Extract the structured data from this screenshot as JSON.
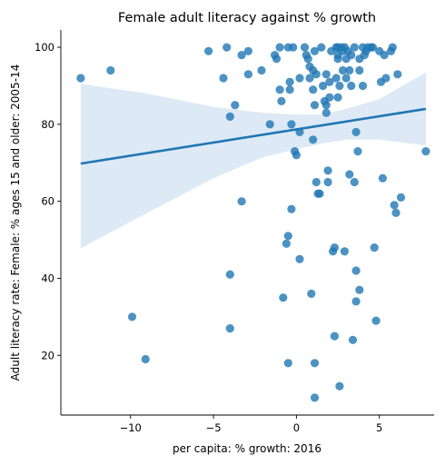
{
  "chart_data": {
    "type": "scatter",
    "title": "Female adult literacy against % growth",
    "xlabel": "per capita: % growth: 2016",
    "ylabel": "Adult literacy rate: Female: % ages 15 and older: 2005-14",
    "xlim": [
      -14.2,
      8.3
    ],
    "ylim": [
      4.5,
      104.5
    ],
    "xticks": [
      -10,
      -5,
      0,
      5
    ],
    "xtick_labels": [
      "−10",
      "−5",
      "0",
      "5"
    ],
    "yticks": [
      20,
      40,
      60,
      80,
      100
    ],
    "ytick_labels": [
      "20",
      "40",
      "60",
      "80",
      "100"
    ],
    "grid": false,
    "legend": "none",
    "colors": {
      "points": "#1f77b4",
      "line": "#1f77b4",
      "band": "#c6dbef"
    },
    "regression": {
      "x": [
        -13.0,
        7.8
      ],
      "y": [
        69.8,
        84.0
      ]
    },
    "confidence_band": {
      "x": [
        -13.0,
        -9.0,
        -5.0,
        -2.0,
        0.0,
        1.5,
        3.0,
        5.0,
        7.8
      ],
      "upper": [
        90.5,
        88.0,
        84.5,
        83.0,
        82.5,
        82.5,
        84.0,
        86.5,
        93.5
      ],
      "lower": [
        47.8,
        57.0,
        66.0,
        71.5,
        73.5,
        75.0,
        76.0,
        76.0,
        74.5
      ]
    },
    "points": [
      [
        -13.0,
        92
      ],
      [
        -11.2,
        94
      ],
      [
        -9.9,
        30
      ],
      [
        -9.1,
        19
      ],
      [
        -5.3,
        99
      ],
      [
        -4.4,
        92
      ],
      [
        -4.2,
        100
      ],
      [
        -4.0,
        82
      ],
      [
        -4.0,
        41
      ],
      [
        -4.0,
        27
      ],
      [
        -3.7,
        85
      ],
      [
        -3.3,
        98
      ],
      [
        -3.3,
        60
      ],
      [
        -2.9,
        99
      ],
      [
        -2.9,
        93
      ],
      [
        -2.1,
        94
      ],
      [
        -1.6,
        80
      ],
      [
        -1.3,
        98
      ],
      [
        -1.2,
        97
      ],
      [
        -1.0,
        100
      ],
      [
        -1.0,
        89
      ],
      [
        -0.9,
        86
      ],
      [
        -0.8,
        35
      ],
      [
        -0.6,
        49
      ],
      [
        -0.5,
        100
      ],
      [
        -0.5,
        51
      ],
      [
        -0.5,
        18
      ],
      [
        -0.4,
        91
      ],
      [
        -0.4,
        89
      ],
      [
        -0.3,
        80
      ],
      [
        -0.3,
        58
      ],
      [
        -0.2,
        100
      ],
      [
        -0.1,
        73
      ],
      [
        0.0,
        72
      ],
      [
        0.2,
        92
      ],
      [
        0.2,
        78
      ],
      [
        0.2,
        45
      ],
      [
        0.5,
        100
      ],
      [
        0.6,
        98
      ],
      [
        0.7,
        97
      ],
      [
        0.8,
        95
      ],
      [
        0.8,
        92
      ],
      [
        0.9,
        36
      ],
      [
        1.0,
        89
      ],
      [
        1.0,
        94
      ],
      [
        1.0,
        76
      ],
      [
        1.1,
        99
      ],
      [
        1.1,
        85
      ],
      [
        1.1,
        18
      ],
      [
        1.1,
        9
      ],
      [
        1.2,
        93
      ],
      [
        1.2,
        65
      ],
      [
        1.3,
        62
      ],
      [
        1.4,
        62
      ],
      [
        1.5,
        100
      ],
      [
        1.6,
        90
      ],
      [
        1.7,
        86
      ],
      [
        1.8,
        93
      ],
      [
        1.8,
        85
      ],
      [
        1.8,
        83
      ],
      [
        1.9,
        68
      ],
      [
        1.9,
        65
      ],
      [
        2.0,
        87
      ],
      [
        2.0,
        91
      ],
      [
        2.1,
        99
      ],
      [
        2.2,
        47
      ],
      [
        2.3,
        25
      ],
      [
        2.3,
        48
      ],
      [
        2.4,
        92
      ],
      [
        2.4,
        100
      ],
      [
        2.5,
        97
      ],
      [
        2.5,
        100
      ],
      [
        2.5,
        98
      ],
      [
        2.5,
        87
      ],
      [
        2.6,
        90
      ],
      [
        2.6,
        12
      ],
      [
        2.7,
        100
      ],
      [
        2.8,
        94
      ],
      [
        2.8,
        99
      ],
      [
        2.9,
        100
      ],
      [
        2.9,
        47
      ],
      [
        3.0,
        92
      ],
      [
        3.0,
        97
      ],
      [
        3.1,
        99
      ],
      [
        3.2,
        94
      ],
      [
        3.2,
        67
      ],
      [
        3.3,
        98
      ],
      [
        3.3,
        90
      ],
      [
        3.4,
        24
      ],
      [
        3.5,
        65
      ],
      [
        3.5,
        100
      ],
      [
        3.6,
        78
      ],
      [
        3.6,
        42
      ],
      [
        3.6,
        34
      ],
      [
        3.7,
        73
      ],
      [
        3.8,
        37
      ],
      [
        3.8,
        97
      ],
      [
        3.8,
        94
      ],
      [
        4.0,
        90
      ],
      [
        4.0,
        100
      ],
      [
        4.1,
        98
      ],
      [
        4.2,
        99
      ],
      [
        4.3,
        100
      ],
      [
        4.5,
        100
      ],
      [
        4.6,
        100
      ],
      [
        4.7,
        48
      ],
      [
        4.8,
        29
      ],
      [
        5.0,
        99
      ],
      [
        5.1,
        91
      ],
      [
        5.2,
        66
      ],
      [
        5.3,
        98
      ],
      [
        5.4,
        92
      ],
      [
        5.7,
        99
      ],
      [
        5.8,
        100
      ],
      [
        5.9,
        59
      ],
      [
        6.0,
        57
      ],
      [
        6.1,
        93
      ],
      [
        6.3,
        61
      ],
      [
        7.8,
        73
      ]
    ]
  }
}
